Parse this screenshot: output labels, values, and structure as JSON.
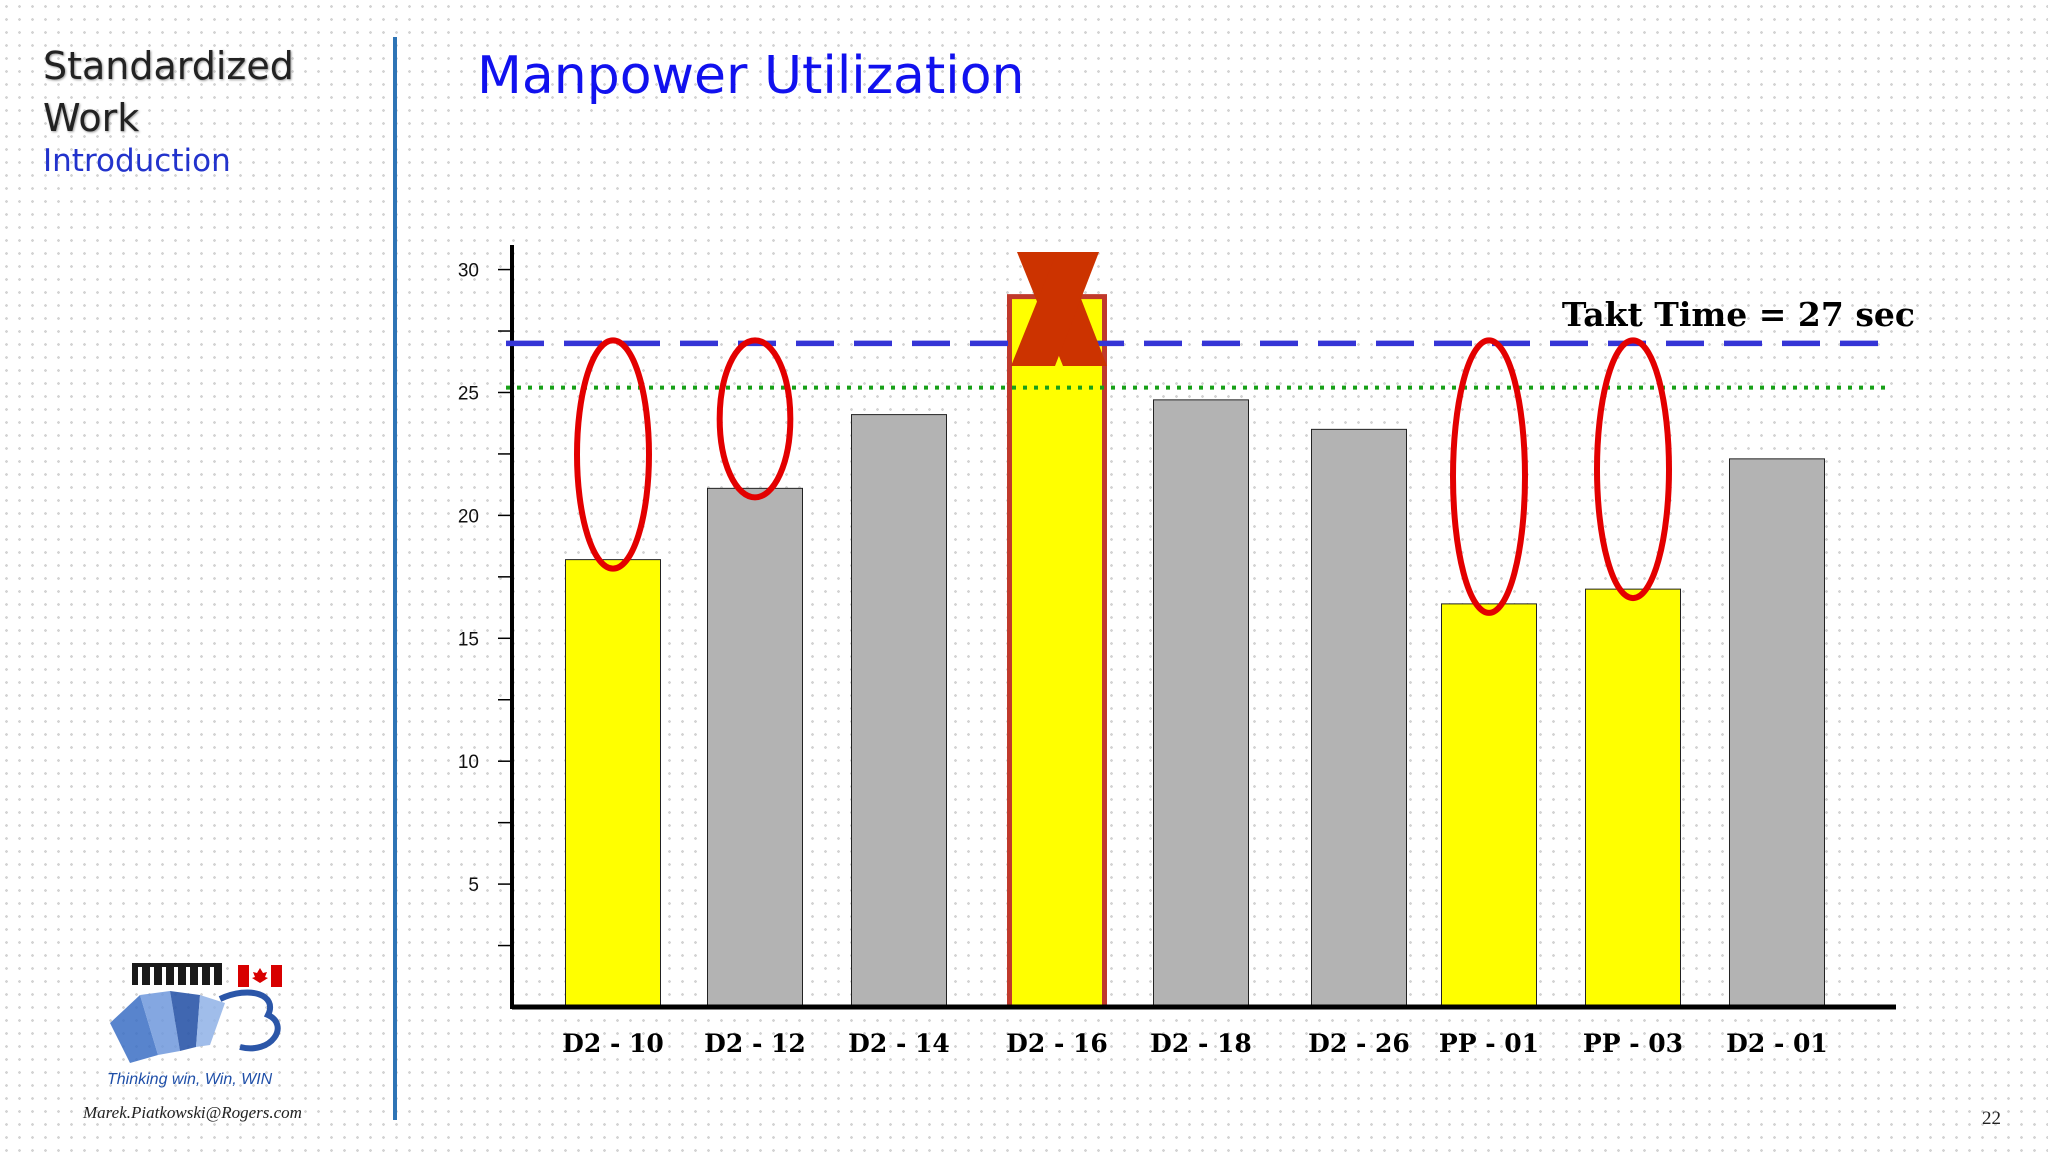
{
  "sidebar": {
    "title_line1": "Standardized",
    "title_line2": "Work",
    "subtitle": "Introduction"
  },
  "title": "Manpower Utilization",
  "footer": {
    "tagline": "Thinking win, Win, WIN",
    "email": "Marek.Piatkowski@Rogers.com",
    "page_number": "22"
  },
  "colors": {
    "highlight_bar": "#ffff00",
    "normal_bar": "#b3b3b3",
    "takt_line": "#3535d6",
    "target_line": "#18a018",
    "circle": "#e30000",
    "cross": "#cc3300"
  },
  "chart_data": {
    "type": "bar",
    "categories": [
      "D2 - 10",
      "D2 - 12",
      "D2 - 14",
      "D2 - 16",
      "D2 - 18",
      "D2 - 26",
      "PP - 01",
      "PP - 03",
      "D2 - 01"
    ],
    "values": [
      18.2,
      21.1,
      24.1,
      28.9,
      24.7,
      23.5,
      16.4,
      17.0,
      22.3
    ],
    "highlighted": [
      true,
      false,
      false,
      true,
      false,
      false,
      true,
      true,
      false
    ],
    "circled": [
      "D2 - 10",
      "D2 - 12",
      "PP - 01",
      "PP - 03"
    ],
    "crossed": [
      "D2 - 16"
    ],
    "yticks": [
      5,
      10,
      15,
      20,
      25,
      30
    ],
    "ylim": [
      0,
      31
    ],
    "reference_lines": [
      {
        "label": "Takt Time = 27 sec",
        "value": 27,
        "style": "dashed"
      },
      {
        "value": 25.2,
        "style": "dotted"
      }
    ]
  }
}
